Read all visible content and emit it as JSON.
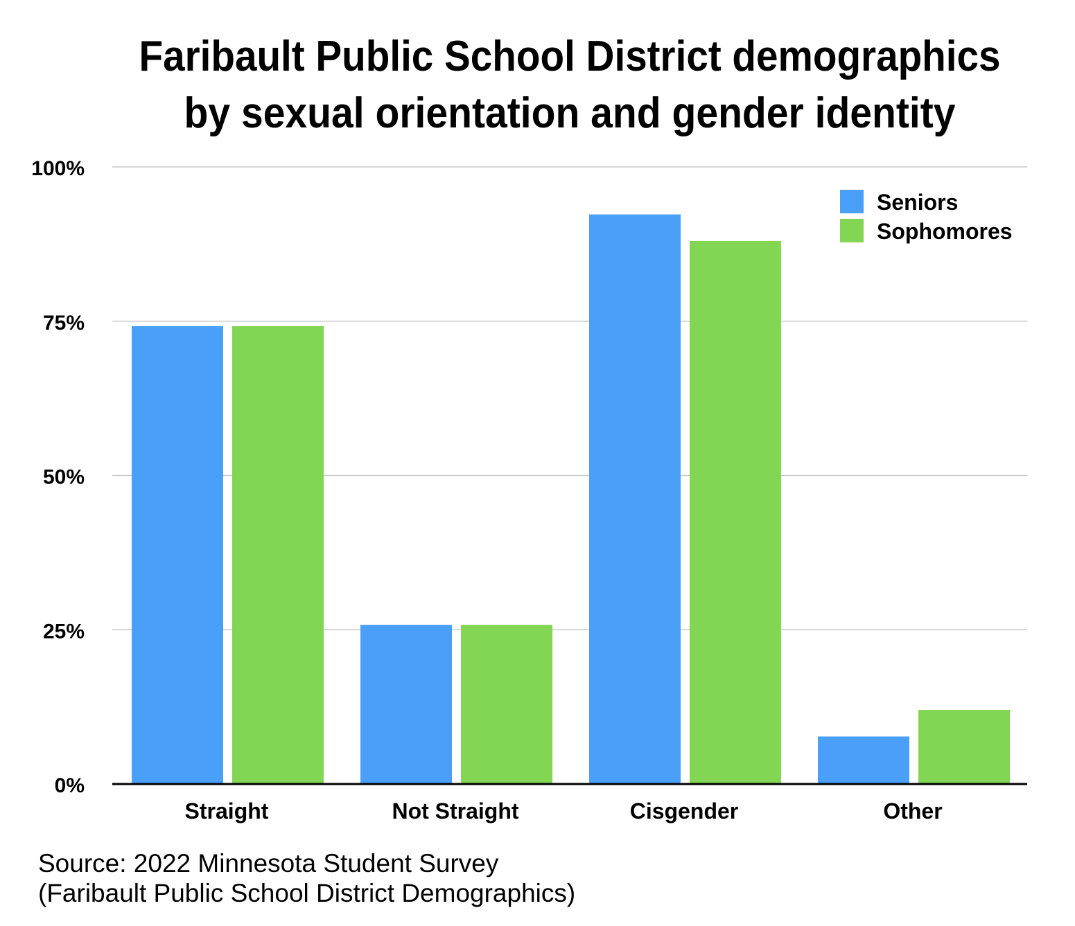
{
  "chart_data": {
    "type": "bar",
    "title": [
      "Faribault Public School District demographics",
      "by sexual orientation and gender identity"
    ],
    "categories": [
      "Straight",
      "Not Straight",
      "Cisgender",
      "Other"
    ],
    "series": [
      {
        "name": "Seniors",
        "color": "#4aa0f8",
        "values": [
          74.2,
          25.8,
          92.3,
          7.7
        ]
      },
      {
        "name": "Sophomores",
        "color": "#83d554",
        "values": [
          74.2,
          25.8,
          88.0,
          12.0
        ]
      }
    ],
    "yticks": [
      0,
      25,
      50,
      75,
      100
    ],
    "ytick_labels": [
      "0%",
      "25%",
      "50%",
      "75%",
      "100%"
    ],
    "ylim": [
      0,
      100
    ],
    "xlabel": "",
    "ylabel": "",
    "grid": true,
    "legend": "top-right",
    "source": [
      "Source: 2022 Minnesota Student Survey",
      "(Faribault Public School District Demographics)"
    ]
  }
}
